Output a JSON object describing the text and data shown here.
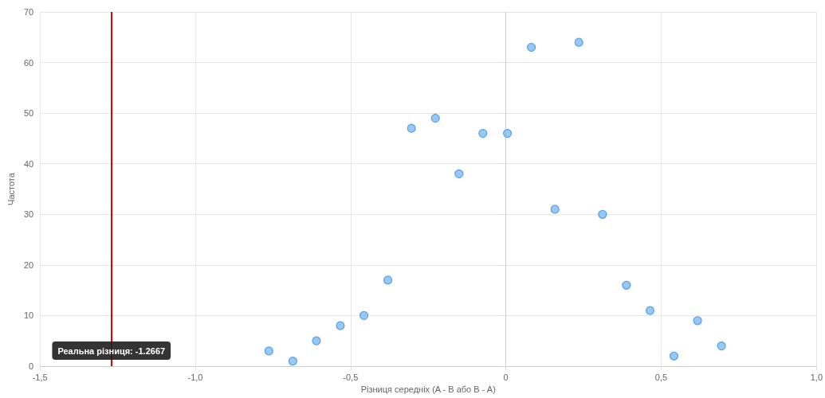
{
  "chart_data": {
    "type": "scatter",
    "xlabel": "Різниця середніх (A - B або B - A)",
    "ylabel": "Частота",
    "x": [
      -0.763,
      -0.686,
      -0.61,
      -0.533,
      -0.457,
      -0.38,
      -0.304,
      -0.227,
      -0.151,
      -0.074,
      0.005,
      0.082,
      0.158,
      0.235,
      0.311,
      0.388,
      0.464,
      0.541,
      0.617,
      0.694
    ],
    "series": [
      {
        "color": "#7cbcf2",
        "values": [
          3,
          1,
          5,
          8,
          10,
          17,
          47,
          49,
          38,
          46,
          46,
          63,
          31,
          64,
          30,
          16,
          11,
          2,
          9,
          4
        ]
      }
    ],
    "xlim": [
      -1.5,
      1.0
    ],
    "xticks": [
      {
        "value": -1.5,
        "label": "-1,5"
      },
      {
        "value": -1.0,
        "label": "-1,0"
      },
      {
        "value": -0.5,
        "label": "-0,5"
      },
      0,
      {
        "value": 0.5,
        "label": "0,5"
      },
      {
        "value": 1.0,
        "label": "1,0"
      }
    ],
    "ylim": [
      0,
      70
    ],
    "yticks": [
      0,
      10,
      20,
      30,
      40,
      50,
      60,
      70
    ],
    "ref_lines": [
      {
        "axis": "x",
        "value": -1.2667,
        "label": "Реальна різниця: -1.2667",
        "color": "#e00000"
      }
    ],
    "grid": true,
    "marker": "circle"
  }
}
